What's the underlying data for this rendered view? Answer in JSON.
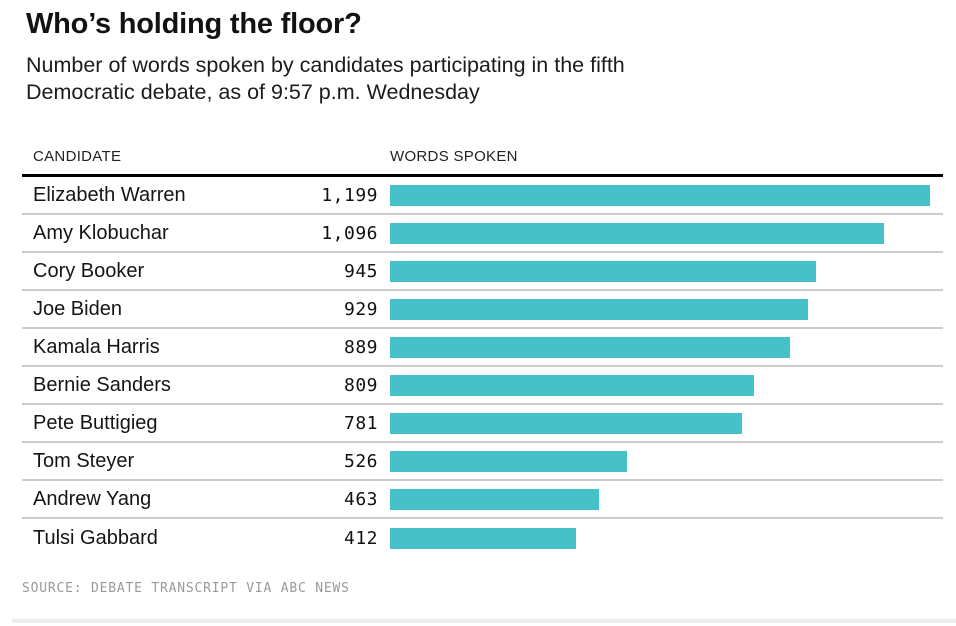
{
  "header": {
    "title": "Who’s holding the floor?",
    "subtitle_line1": "Number of words spoken by candidates participating in the fifth",
    "subtitle_line2": "Democratic debate, as of 9:57 p.m. Wednesday"
  },
  "table": {
    "columns": [
      "CANDIDATE",
      "WORDS SPOKEN"
    ]
  },
  "footer": {
    "source": "SOURCE: DEBATE TRANSCRIPT VIA ABC NEWS"
  },
  "colors": {
    "bar": "#46c1c7",
    "header_rule": "#000000",
    "row_rule": "#cccccc",
    "bottom_rule": "#ededed",
    "source_text": "#9a9a9a"
  },
  "chart_data": {
    "type": "bar",
    "orientation": "horizontal",
    "title": "Who’s holding the floor?",
    "subtitle": "Number of words spoken by candidates participating in the fifth Democratic debate, as of 9:57 p.m. Wednesday",
    "category_label": "CANDIDATE",
    "value_label": "WORDS SPOKEN",
    "categories": [
      "Elizabeth Warren",
      "Amy Klobuchar",
      "Cory Booker",
      "Joe Biden",
      "Kamala Harris",
      "Bernie Sanders",
      "Pete Buttigieg",
      "Tom Steyer",
      "Andrew Yang",
      "Tulsi Gabbard"
    ],
    "values": [
      1199,
      1096,
      945,
      929,
      889,
      809,
      781,
      526,
      463,
      412
    ],
    "values_formatted": [
      "1,199",
      "1,096",
      "945",
      "929",
      "889",
      "809",
      "781",
      "526",
      "463",
      "412"
    ],
    "xlim": [
      0,
      1199
    ],
    "grid": false,
    "legend": false,
    "source": "SOURCE: DEBATE TRANSCRIPT VIA ABC NEWS"
  }
}
